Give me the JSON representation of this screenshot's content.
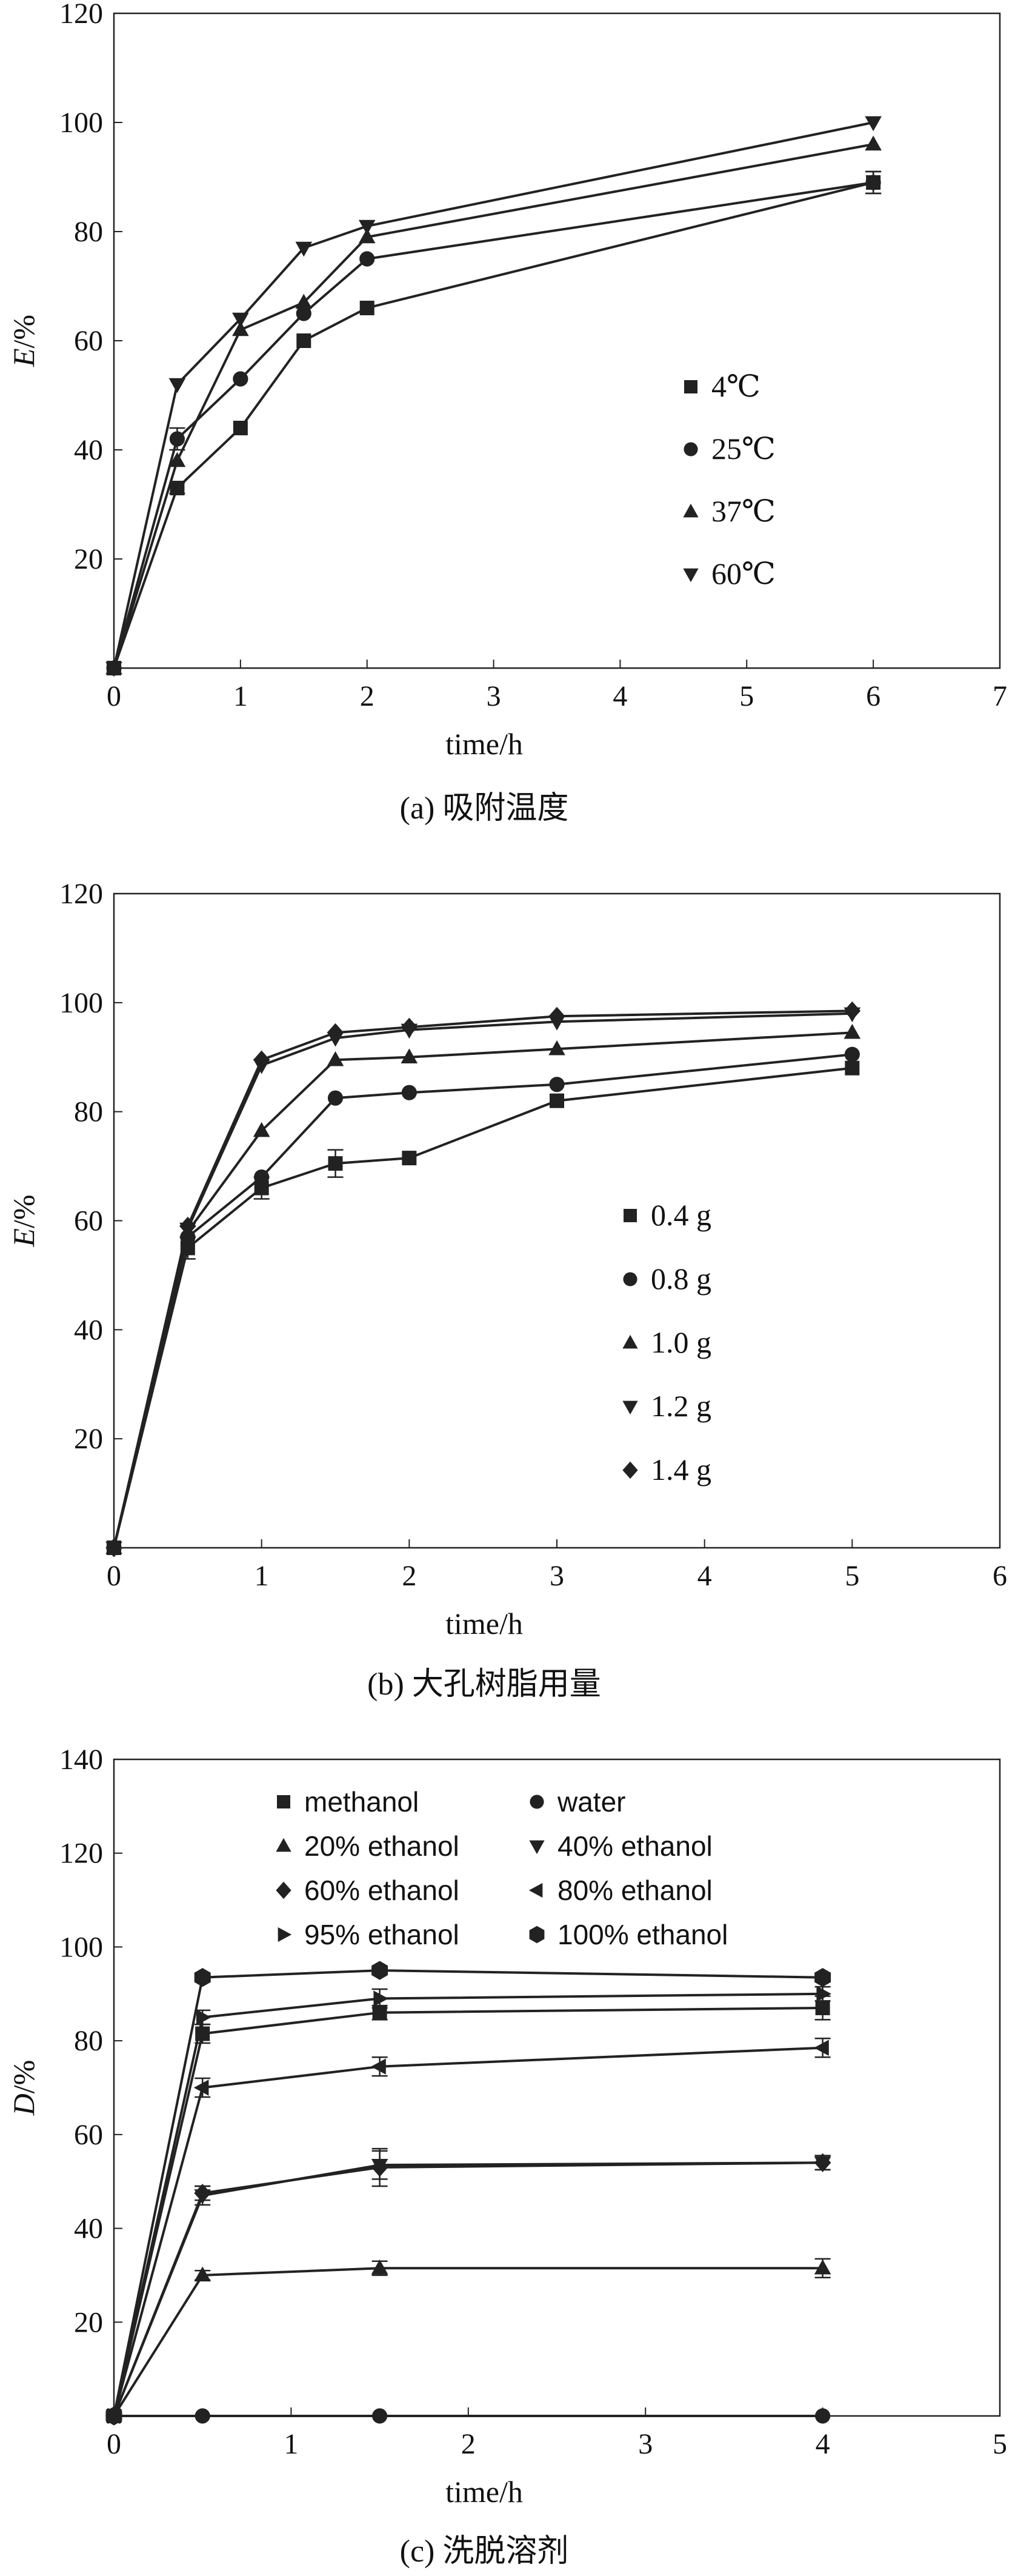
{
  "chart_data": [
    {
      "type": "line",
      "caption": "(a) 吸附温度",
      "xlabel": "time/h",
      "ylabel": "E/%",
      "xlim": [
        0,
        7
      ],
      "ylim": [
        0,
        120
      ],
      "xticks": [
        "0",
        "1",
        "2",
        "3",
        "4",
        "5",
        "6",
        "7"
      ],
      "yticks": [
        "20",
        "40",
        "60",
        "80",
        "100",
        "120"
      ],
      "legend_position": "center-right",
      "series": [
        {
          "name": "4℃",
          "marker": "square",
          "x": [
            0,
            0.5,
            1,
            1.5,
            2,
            6
          ],
          "y": [
            0,
            33,
            44,
            60,
            66,
            89
          ],
          "err": [
            0,
            1,
            0,
            0,
            0,
            2
          ]
        },
        {
          "name": "25℃",
          "marker": "circle",
          "x": [
            0,
            0.5,
            1,
            1.5,
            2,
            6
          ],
          "y": [
            0,
            42,
            53,
            65,
            75,
            89
          ],
          "err": [
            0,
            2,
            0,
            0,
            0,
            2
          ]
        },
        {
          "name": "37℃",
          "marker": "triangle-up",
          "x": [
            0,
            0.5,
            1,
            1.5,
            2,
            6
          ],
          "y": [
            0,
            38,
            62,
            67,
            79,
            96
          ],
          "err": [
            0,
            0,
            0,
            0,
            0,
            0
          ]
        },
        {
          "name": "60℃",
          "marker": "triangle-down",
          "x": [
            0,
            0.5,
            1,
            1.5,
            2,
            6
          ],
          "y": [
            0,
            52,
            64,
            77,
            81,
            100
          ],
          "err": [
            0,
            0,
            0,
            0,
            0,
            0
          ]
        }
      ]
    },
    {
      "type": "line",
      "caption": "(b) 大孔树脂用量",
      "xlabel": "time/h",
      "ylabel": "E/%",
      "xlim": [
        0,
        6
      ],
      "ylim": [
        0,
        120
      ],
      "xticks": [
        "0",
        "1",
        "2",
        "3",
        "4",
        "5",
        "6"
      ],
      "yticks": [
        "20",
        "40",
        "60",
        "80",
        "100",
        "120"
      ],
      "legend_position": "center-right",
      "series": [
        {
          "name": "0.4 g",
          "marker": "square",
          "x": [
            0,
            0.5,
            1,
            1.5,
            2,
            3,
            5
          ],
          "y": [
            0,
            55,
            66,
            70.5,
            71.5,
            82,
            88
          ],
          "err": [
            0,
            2,
            2,
            2.5,
            0,
            0,
            0
          ]
        },
        {
          "name": "0.8 g",
          "marker": "circle",
          "x": [
            0,
            0.5,
            1,
            1.5,
            2,
            3,
            5
          ],
          "y": [
            0,
            57,
            68,
            82.5,
            83.5,
            85,
            90.5
          ],
          "err": [
            0,
            0,
            0,
            0,
            0,
            0,
            0
          ]
        },
        {
          "name": "1.0 g",
          "marker": "triangle-up",
          "x": [
            0,
            0.5,
            1,
            1.5,
            2,
            3,
            5
          ],
          "y": [
            0,
            58,
            76.5,
            89.5,
            90,
            91.5,
            94.5
          ],
          "err": [
            0,
            0,
            0,
            0,
            0,
            0,
            0
          ]
        },
        {
          "name": "1.2 g",
          "marker": "triangle-down",
          "x": [
            0,
            0.5,
            1,
            1.5,
            2,
            3,
            5
          ],
          "y": [
            0,
            58.5,
            88.5,
            93.5,
            95,
            96.5,
            98
          ],
          "err": [
            0,
            0,
            0,
            0,
            0,
            0,
            0
          ]
        },
        {
          "name": "1.4 g",
          "marker": "diamond",
          "x": [
            0,
            0.5,
            1,
            1.5,
            2,
            3,
            5
          ],
          "y": [
            0,
            59,
            89.5,
            94.5,
            95.5,
            97.5,
            98.5
          ],
          "err": [
            0,
            0,
            0,
            0,
            0,
            0,
            0
          ]
        }
      ]
    },
    {
      "type": "line",
      "caption": "(c) 洗脱溶剂",
      "xlabel": "time/h",
      "ylabel": "D/%",
      "xlim": [
        0,
        5
      ],
      "ylim": [
        0,
        140
      ],
      "xticks": [
        "0",
        "1",
        "2",
        "3",
        "4",
        "5"
      ],
      "yticks": [
        "20",
        "40",
        "60",
        "80",
        "100",
        "120",
        "140"
      ],
      "legend_position": "top",
      "series": [
        {
          "name": "methanol",
          "marker": "square",
          "x": [
            0,
            0.5,
            1.5,
            4
          ],
          "y": [
            0,
            81.5,
            86,
            87
          ],
          "err": [
            0,
            2,
            1.5,
            2.5
          ]
        },
        {
          "name": "water",
          "marker": "circle",
          "x": [
            0,
            0.5,
            1.5,
            4
          ],
          "y": [
            0,
            0,
            0,
            0
          ],
          "err": [
            0,
            0,
            0,
            0
          ]
        },
        {
          "name": "20% ethanol",
          "marker": "triangle-up",
          "x": [
            0,
            0.5,
            1.5,
            4
          ],
          "y": [
            0,
            30,
            31.5,
            31.5
          ],
          "err": [
            0,
            1,
            1.5,
            2
          ]
        },
        {
          "name": "40% ethanol",
          "marker": "triangle-down",
          "x": [
            0,
            0.5,
            1.5,
            4
          ],
          "y": [
            0,
            47,
            53.5,
            54
          ],
          "err": [
            0,
            2,
            3,
            1.5
          ]
        },
        {
          "name": "60% ethanol",
          "marker": "diamond",
          "x": [
            0,
            0.5,
            1.5,
            4
          ],
          "y": [
            0,
            47.5,
            53,
            54
          ],
          "err": [
            0,
            1.5,
            4,
            1.5
          ]
        },
        {
          "name": "80% ethanol",
          "marker": "triangle-left",
          "x": [
            0,
            0.5,
            1.5,
            4
          ],
          "y": [
            0,
            70,
            74.5,
            78.5
          ],
          "err": [
            0,
            2,
            2,
            2
          ]
        },
        {
          "name": "95% ethanol",
          "marker": "triangle-right",
          "x": [
            0,
            0.5,
            1.5,
            4
          ],
          "y": [
            0,
            85,
            89,
            90
          ],
          "err": [
            0,
            1.5,
            2,
            1.5
          ]
        },
        {
          "name": "100% ethanol",
          "marker": "hexagon",
          "x": [
            0,
            0.5,
            1.5,
            4
          ],
          "y": [
            0,
            93.5,
            95,
            93.5
          ],
          "err": [
            0,
            0,
            0,
            0
          ]
        }
      ]
    }
  ]
}
